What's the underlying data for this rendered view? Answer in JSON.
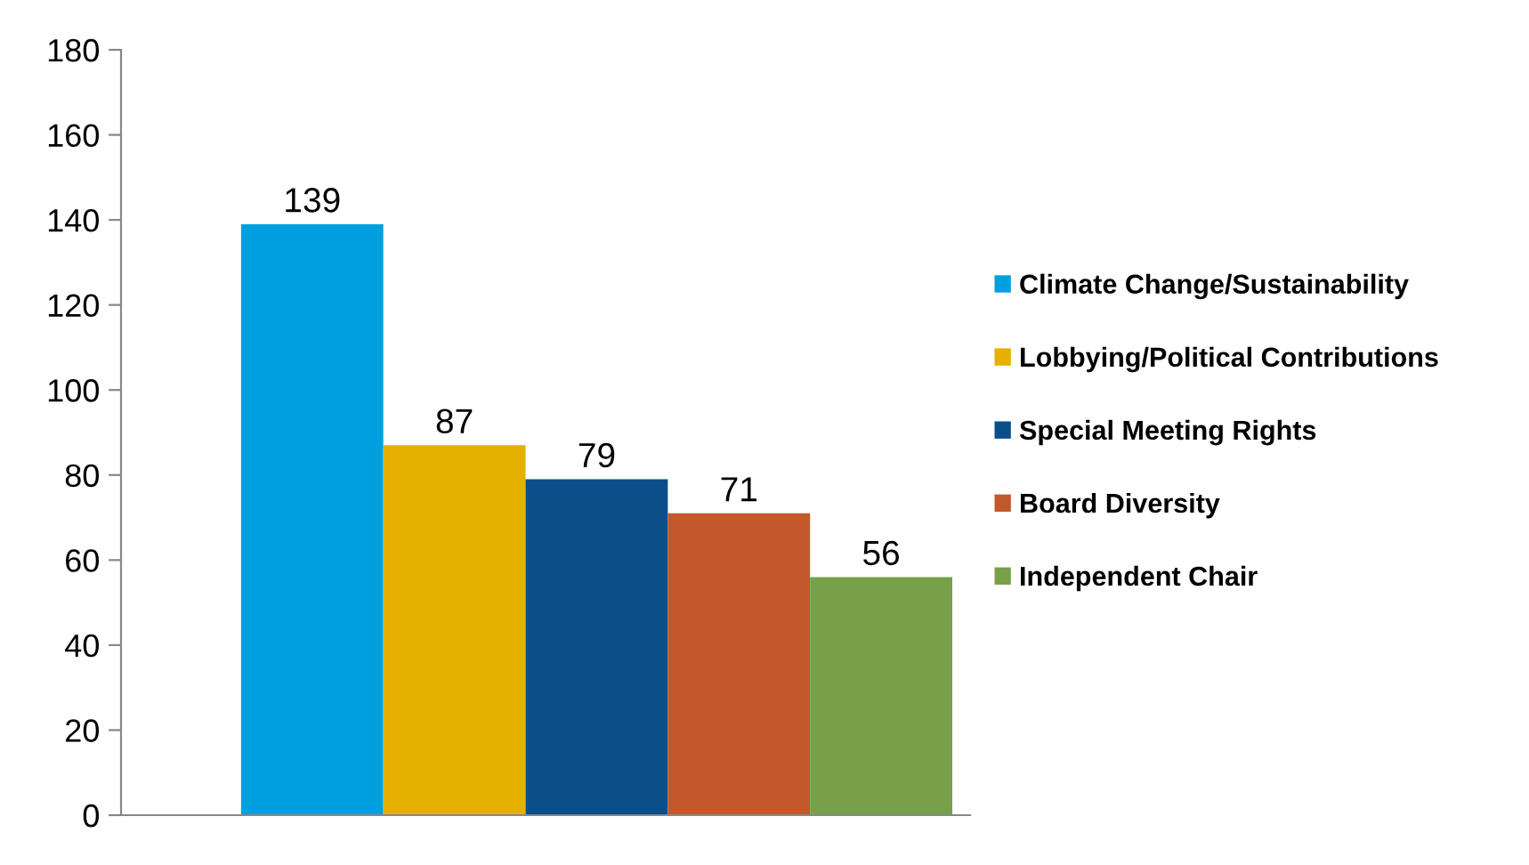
{
  "chart_data": {
    "type": "bar",
    "categories": [
      null
    ],
    "series": [
      {
        "name": "Climate Change/Sustainability",
        "color": "#00a0e0",
        "values": [
          139
        ]
      },
      {
        "name": "Lobbying/Political Contributions",
        "color": "#e6b000",
        "values": [
          87
        ]
      },
      {
        "name": "Special Meeting Rights",
        "color": "#0a4f8a",
        "values": [
          79
        ]
      },
      {
        "name": "Board Diversity",
        "color": "#c3582a",
        "values": [
          71
        ]
      },
      {
        "name": "Independent Chair",
        "color": "#77a04a",
        "values": [
          56
        ]
      }
    ],
    "ylim": [
      0,
      180
    ],
    "yticks": [
      0,
      20,
      40,
      60,
      80,
      100,
      120,
      140,
      160,
      180
    ],
    "grid": false,
    "legend": "right",
    "data_labels": true
  }
}
